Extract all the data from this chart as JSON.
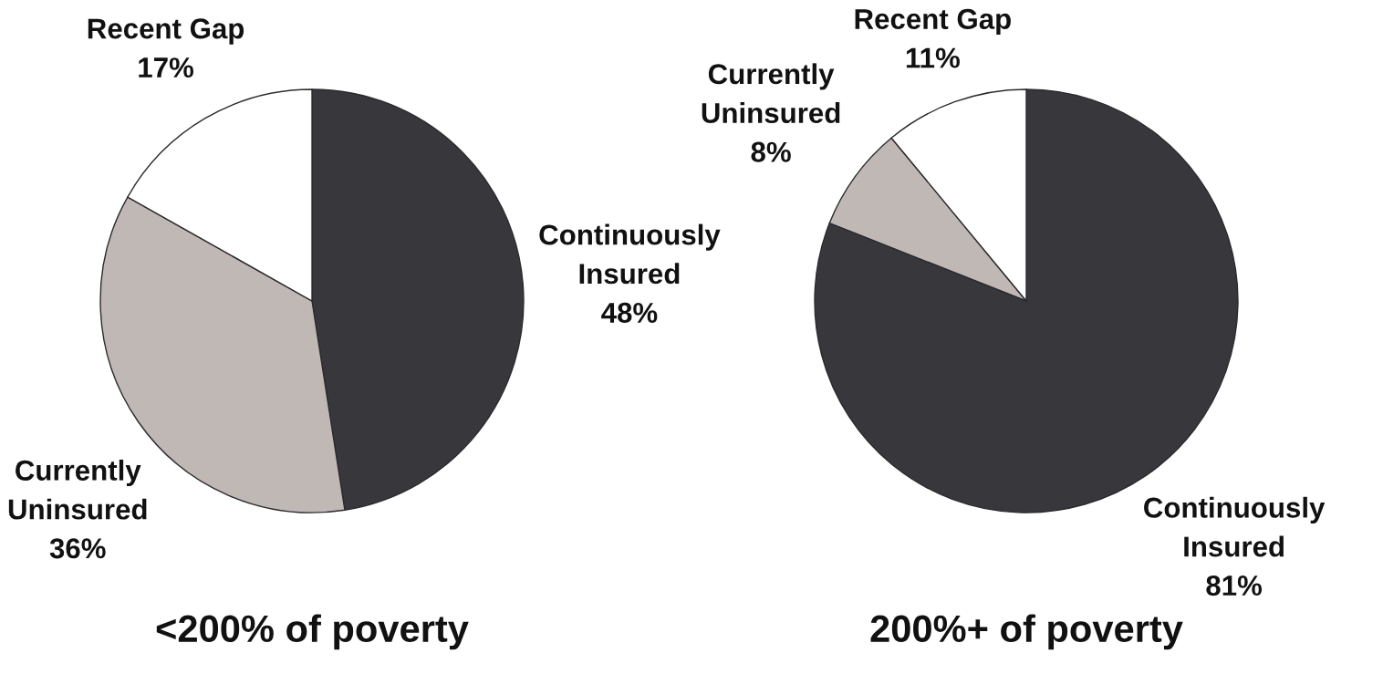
{
  "chart_data": [
    {
      "type": "pie",
      "title": "<200% of poverty",
      "categories": [
        "Continuously Insured",
        "Currently Uninsured",
        "Recent Gap"
      ],
      "values": [
        48,
        36,
        17
      ],
      "value_labels": [
        "48%",
        "36%",
        "17%"
      ],
      "colors": [
        "#38373c",
        "#c0b8b5",
        "#ffffff"
      ]
    },
    {
      "type": "pie",
      "title": "200%+ of poverty",
      "categories": [
        "Continuously Insured",
        "Currently Uninsured",
        "Recent Gap"
      ],
      "values": [
        81,
        8,
        11
      ],
      "value_labels": [
        "81%",
        "8%",
        "11%"
      ],
      "colors": [
        "#38373c",
        "#c0b8b5",
        "#ffffff"
      ]
    }
  ]
}
